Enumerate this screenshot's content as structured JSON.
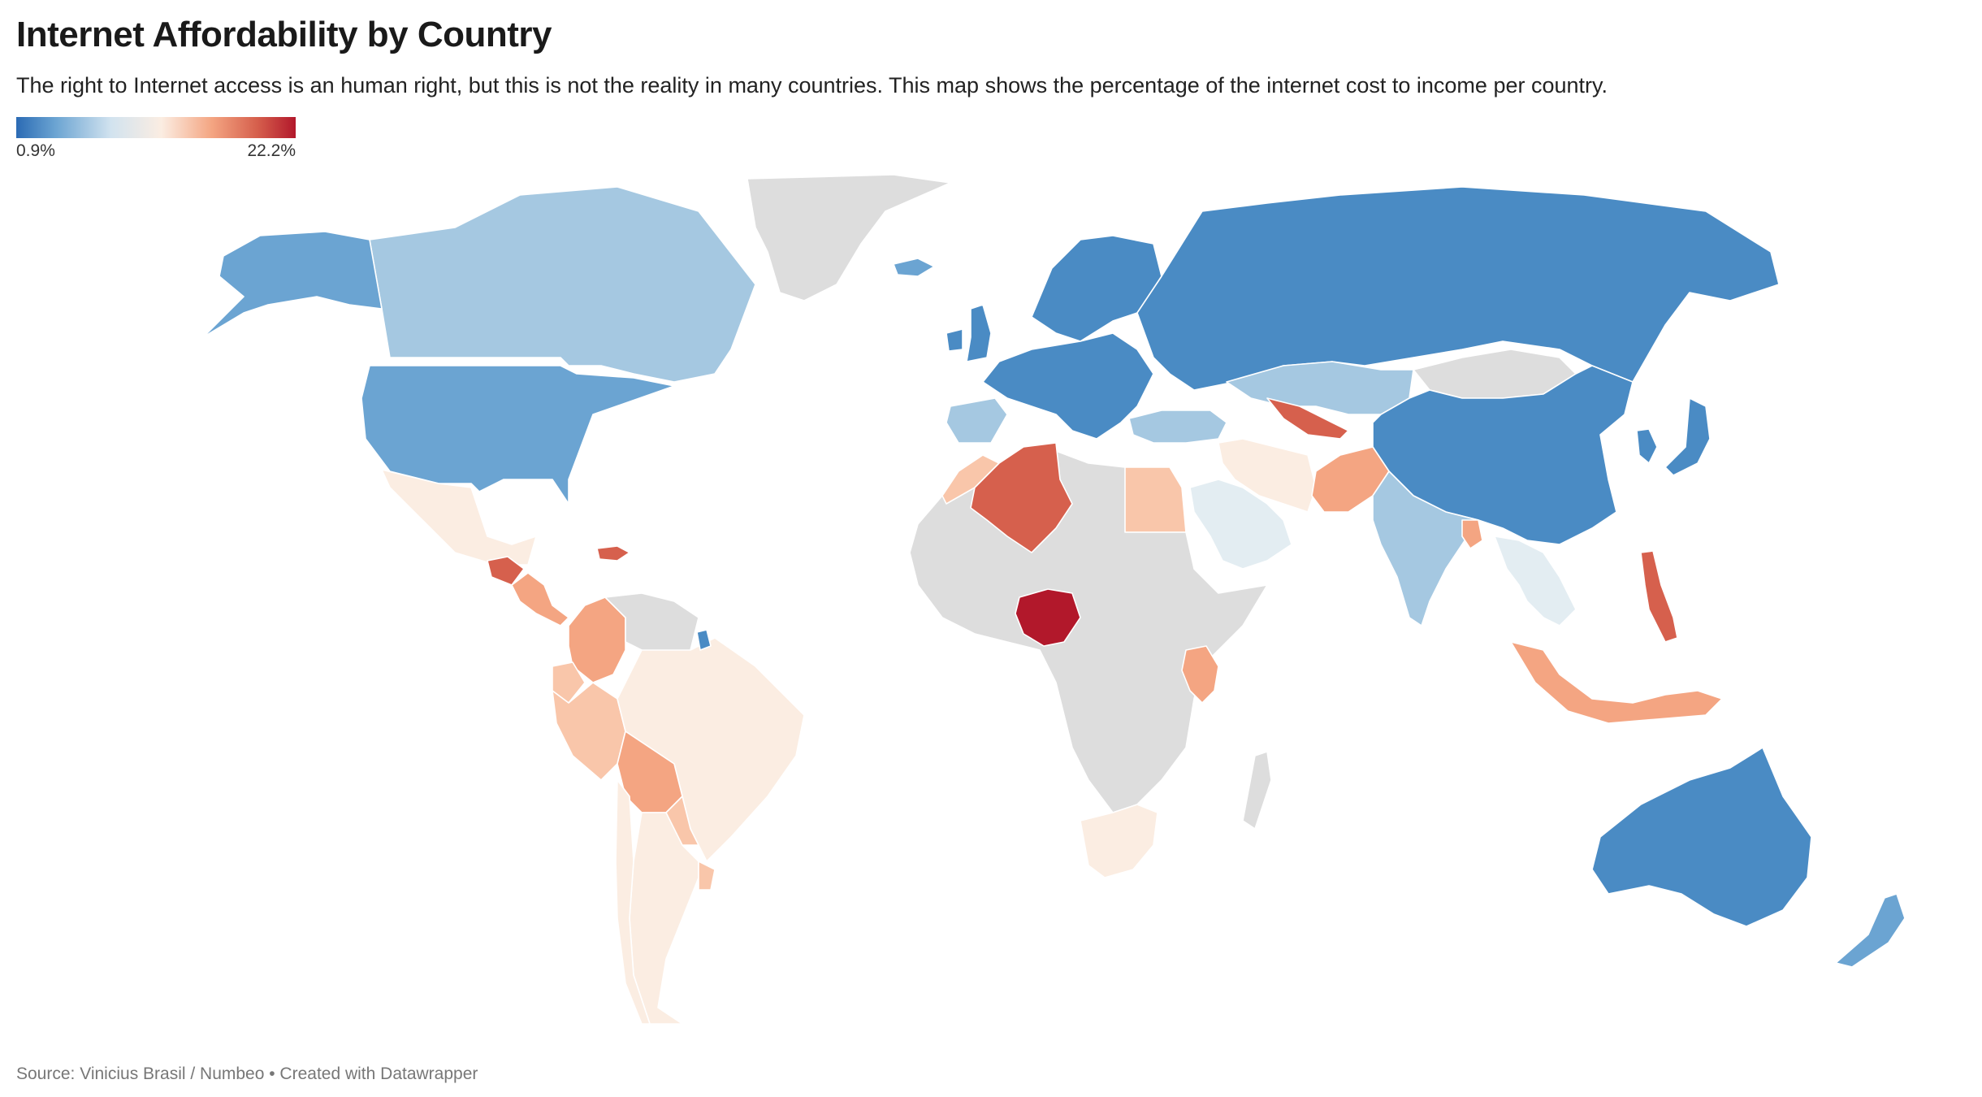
{
  "header": {
    "title": "Internet Affordability by Country",
    "subtitle": "The right to Internet access is an human right, but this is not the reality in many countries. This map shows the percentage of the internet cost to income per country."
  },
  "legend": {
    "min_label": "0.9%",
    "max_label": "22.2%"
  },
  "footer": {
    "source": "Source: Vinicius Brasil / Numbeo • Created with Datawrapper"
  },
  "colors": {
    "no_data": "#dddddd",
    "scale": [
      "#2b6bb4",
      "#6ba4d2",
      "#d2e3ef",
      "#fbede2",
      "#f4a582",
      "#d6604d",
      "#b2182b"
    ]
  },
  "regions": [
    {
      "name": "Greenland",
      "category": "no_data"
    },
    {
      "name": "Canada",
      "category": "light_blue"
    },
    {
      "name": "Alaska",
      "category": "medium_blue"
    },
    {
      "name": "United States",
      "category": "medium_blue"
    },
    {
      "name": "Mexico",
      "category": "cream"
    },
    {
      "name": "Guatemala",
      "category": "red"
    },
    {
      "name": "Central America",
      "category": "salmon"
    },
    {
      "name": "Dominican Republic",
      "category": "red"
    },
    {
      "name": "Colombia",
      "category": "salmon"
    },
    {
      "name": "Venezuela",
      "category": "no_data"
    },
    {
      "name": "Ecuador",
      "category": "light_salmon"
    },
    {
      "name": "Peru",
      "category": "light_salmon"
    },
    {
      "name": "Brazil",
      "category": "cream"
    },
    {
      "name": "Bolivia",
      "category": "salmon"
    },
    {
      "name": "Paraguay",
      "category": "light_salmon"
    },
    {
      "name": "Argentina",
      "category": "cream"
    },
    {
      "name": "Chile",
      "category": "cream"
    },
    {
      "name": "Uruguay",
      "category": "light_salmon"
    },
    {
      "name": "French Guiana",
      "category": "dark_blue"
    },
    {
      "name": "Iceland",
      "category": "medium_blue"
    },
    {
      "name": "United Kingdom",
      "category": "dark_blue"
    },
    {
      "name": "Ireland",
      "category": "dark_blue"
    },
    {
      "name": "Scandinavia",
      "category": "dark_blue"
    },
    {
      "name": "Europe",
      "category": "dark_blue"
    },
    {
      "name": "Spain",
      "category": "light_blue"
    },
    {
      "name": "Russia",
      "category": "dark_blue"
    },
    {
      "name": "Kazakhstan",
      "category": "light_blue"
    },
    {
      "name": "Uzbekistan",
      "category": "red"
    },
    {
      "name": "Mongolia",
      "category": "no_data"
    },
    {
      "name": "China",
      "category": "dark_blue"
    },
    {
      "name": "Japan",
      "category": "dark_blue"
    },
    {
      "name": "Korea",
      "category": "dark_blue"
    },
    {
      "name": "Turkey",
      "category": "light_blue"
    },
    {
      "name": "Iran",
      "category": "cream"
    },
    {
      "name": "Saudi Arabia",
      "category": "pale_blue"
    },
    {
      "name": "Egypt",
      "category": "light_salmon"
    },
    {
      "name": "Pakistan",
      "category": "salmon"
    },
    {
      "name": "India",
      "category": "light_blue"
    },
    {
      "name": "Bangladesh",
      "category": "salmon"
    },
    {
      "name": "Southeast Asia",
      "category": "pale_blue"
    },
    {
      "name": "Philippines",
      "category": "red"
    },
    {
      "name": "Indonesia",
      "category": "salmon"
    },
    {
      "name": "Algeria",
      "category": "red"
    },
    {
      "name": "Morocco",
      "category": "light_salmon"
    },
    {
      "name": "Nigeria",
      "category": "dark_red"
    },
    {
      "name": "Kenya",
      "category": "salmon"
    },
    {
      "name": "Africa",
      "category": "no_data"
    },
    {
      "name": "Madagascar",
      "category": "no_data"
    },
    {
      "name": "South Africa",
      "category": "cream"
    },
    {
      "name": "Australia",
      "category": "dark_blue"
    },
    {
      "name": "New Zealand",
      "category": "medium_blue"
    }
  ]
}
